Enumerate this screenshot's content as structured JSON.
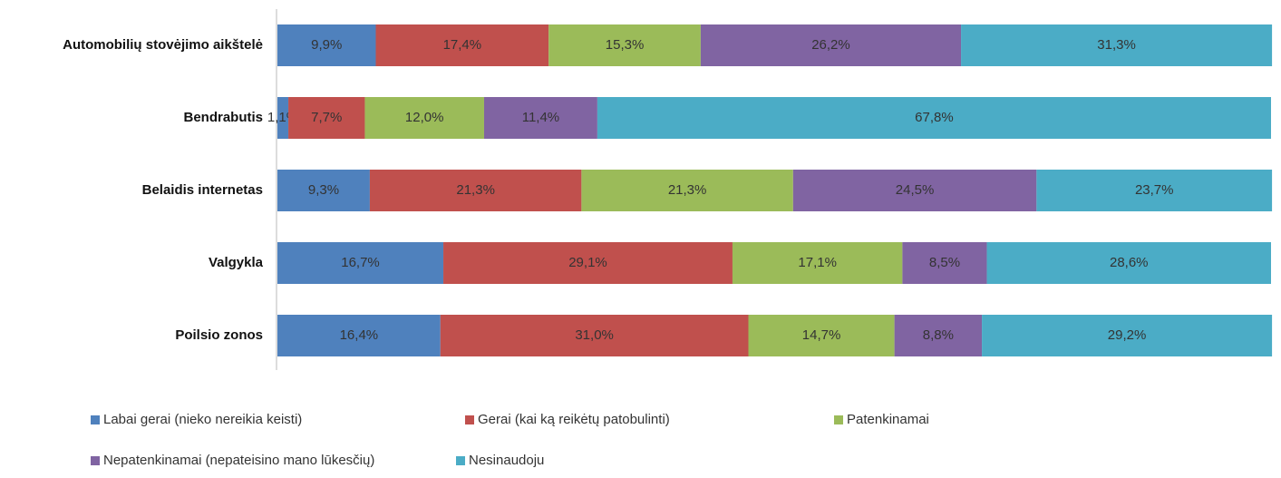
{
  "chart_data": {
    "type": "stacked_bar_horizontal",
    "categories": [
      "Automobilių stovėjimo aikštelė",
      "Bendrabutis",
      "Belaidis internetas",
      "Valgykla",
      "Poilsio zonos"
    ],
    "series": [
      {
        "name": "Labai gerai (nieko nereikia keisti)",
        "color": "#4f81bd",
        "values": [
          9.9,
          1.1,
          9.3,
          16.7,
          16.4
        ],
        "value_labels": [
          "9,9%",
          "1,1%",
          "9,3%",
          "16,7%",
          "16,4%"
        ]
      },
      {
        "name": "Gerai (kai ką reikėtų patobulinti)",
        "color": "#c0504d",
        "values": [
          17.4,
          7.7,
          21.3,
          29.1,
          31.0
        ],
        "value_labels": [
          "17,4%",
          "7,7%",
          "21,3%",
          "29,1%",
          "31,0%"
        ]
      },
      {
        "name": "Patenkinamai",
        "color": "#9bbb59",
        "values": [
          15.3,
          12.0,
          21.3,
          17.1,
          14.7
        ],
        "value_labels": [
          "15,3%",
          "12,0%",
          "21,3%",
          "17,1%",
          "14,7%"
        ]
      },
      {
        "name": "Nepatenkinamai (nepateisino mano lūkesčių)",
        "color": "#8064a2",
        "values": [
          26.2,
          11.4,
          24.5,
          8.5,
          8.8
        ],
        "value_labels": [
          "26,2%",
          "11,4%",
          "24,5%",
          "8,5%",
          "8,8%"
        ]
      },
      {
        "name": "Nesinaudoju",
        "color": "#4bacc6",
        "values": [
          31.3,
          67.8,
          23.7,
          28.6,
          29.2
        ],
        "value_labels": [
          "31,3%",
          "67,8%",
          "23,7%",
          "28,6%",
          "29,2%"
        ]
      }
    ],
    "xlim": [
      0,
      100
    ]
  }
}
